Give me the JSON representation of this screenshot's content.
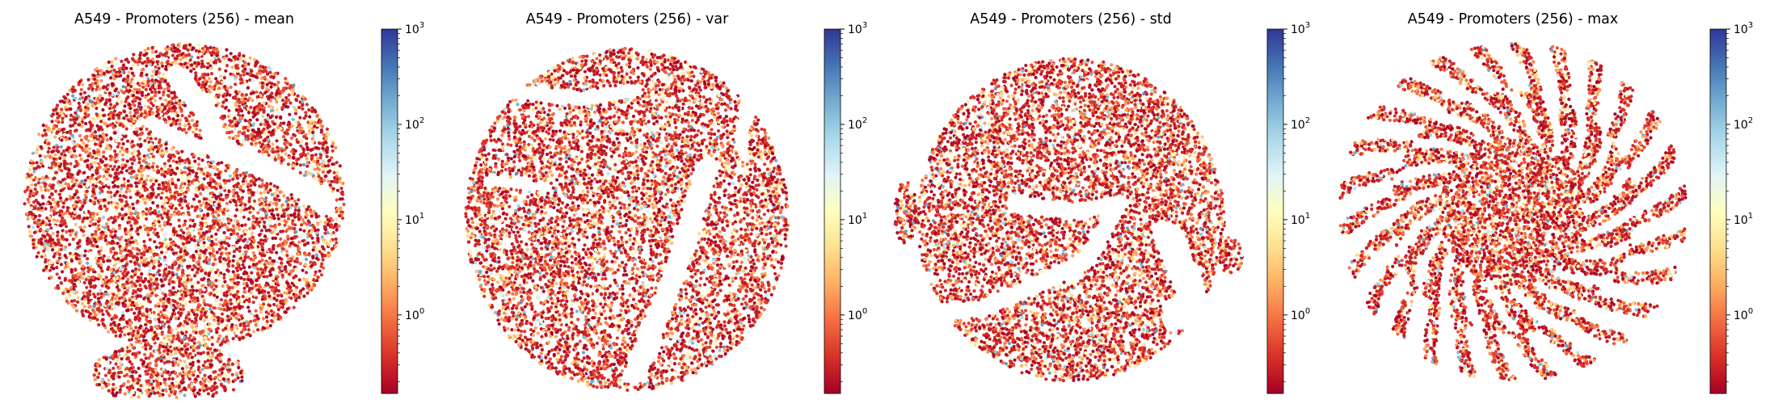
{
  "chart_data": [
    {
      "type": "scatter",
      "title": "A549 - Promoters (256) - mean",
      "colorbar": {
        "scale": "log",
        "colormap": "RdYlBu",
        "range": [
          0.15,
          1000
        ],
        "ticks": [
          {
            "base": "10",
            "exp": "0"
          },
          {
            "base": "10",
            "exp": "1"
          },
          {
            "base": "10",
            "exp": "2"
          },
          {
            "base": "10",
            "exp": "3"
          }
        ]
      },
      "axes_visible": false,
      "grid": false
    },
    {
      "type": "scatter",
      "title": "A549 - Promoters (256) - var",
      "colorbar": {
        "scale": "log",
        "colormap": "RdYlBu",
        "range": [
          0.15,
          1000
        ],
        "ticks": [
          {
            "base": "10",
            "exp": "0"
          },
          {
            "base": "10",
            "exp": "1"
          },
          {
            "base": "10",
            "exp": "2"
          },
          {
            "base": "10",
            "exp": "3"
          }
        ]
      },
      "axes_visible": false,
      "grid": false
    },
    {
      "type": "scatter",
      "title": "A549 - Promoters (256) - std",
      "colorbar": {
        "scale": "log",
        "colormap": "RdYlBu",
        "range": [
          0.15,
          1000
        ],
        "ticks": [
          {
            "base": "10",
            "exp": "0"
          },
          {
            "base": "10",
            "exp": "1"
          },
          {
            "base": "10",
            "exp": "2"
          },
          {
            "base": "10",
            "exp": "3"
          }
        ]
      },
      "axes_visible": false,
      "grid": false
    },
    {
      "type": "scatter",
      "title": "A549 - Promoters (256) - max",
      "colorbar": {
        "scale": "log",
        "colormap": "RdYlBu",
        "range": [
          0.15,
          1000
        ],
        "ticks": [
          {
            "base": "10",
            "exp": "0"
          },
          {
            "base": "10",
            "exp": "1"
          },
          {
            "base": "10",
            "exp": "2"
          },
          {
            "base": "10",
            "exp": "3"
          }
        ]
      },
      "axes_visible": false,
      "grid": false
    }
  ]
}
